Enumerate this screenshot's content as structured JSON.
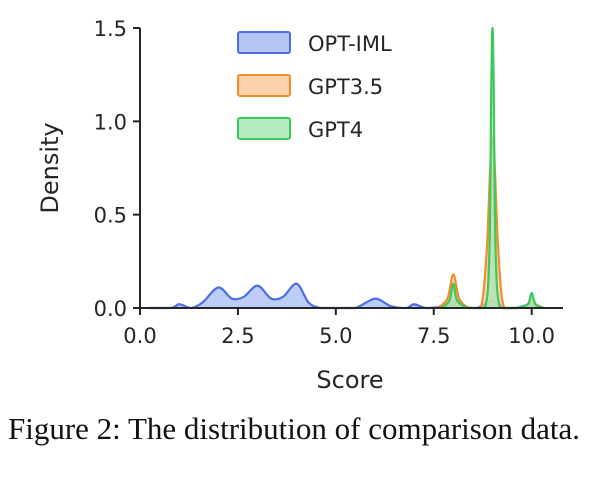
{
  "chart_data": {
    "type": "area",
    "title": "",
    "xlabel": "Score",
    "ylabel": "Density",
    "xlim": [
      0.0,
      10.8
    ],
    "ylim": [
      0.0,
      1.5
    ],
    "xticks": [
      {
        "value": 0.0,
        "label": "0.0"
      },
      {
        "value": 2.5,
        "label": "2.5"
      },
      {
        "value": 5.0,
        "label": "5.0"
      },
      {
        "value": 7.5,
        "label": "7.5"
      },
      {
        "value": 10.0,
        "label": "10.0"
      }
    ],
    "yticks": [
      {
        "value": 0.0,
        "label": "0.0"
      },
      {
        "value": 0.5,
        "label": "0.5"
      },
      {
        "value": 1.0,
        "label": "1.0"
      },
      {
        "value": 1.5,
        "label": "1.5"
      }
    ],
    "legend_position": "top-center",
    "series": [
      {
        "name": "OPT-IML",
        "color": "#4a6fe3",
        "fill": "#a8bcf4",
        "x": [
          0.2,
          0.8,
          1.0,
          1.3,
          1.6,
          2.0,
          2.35,
          2.65,
          3.0,
          3.35,
          3.65,
          4.0,
          4.3,
          4.6,
          5.0,
          5.5,
          6.0,
          6.4,
          6.8,
          7.0,
          7.3,
          7.8,
          8.0,
          8.2,
          8.6,
          9.0,
          9.3,
          9.6,
          10.0,
          10.3
        ],
        "y": [
          0.0,
          0.0,
          0.02,
          0.0,
          0.03,
          0.11,
          0.05,
          0.06,
          0.12,
          0.05,
          0.06,
          0.13,
          0.03,
          0.0,
          0.0,
          0.0,
          0.05,
          0.01,
          0.0,
          0.02,
          0.0,
          0.01,
          0.04,
          0.01,
          0.0,
          0.04,
          0.0,
          0.0,
          0.02,
          0.0
        ]
      },
      {
        "name": "GPT3.5",
        "color": "#f28e2b",
        "fill": "#f9c99a",
        "x": [
          7.6,
          7.85,
          8.0,
          8.15,
          8.4,
          8.7,
          8.85,
          8.95,
          9.0,
          9.05,
          9.15,
          9.3,
          9.7,
          9.9,
          10.0,
          10.1,
          10.3
        ],
        "y": [
          0.0,
          0.05,
          0.18,
          0.05,
          0.0,
          0.0,
          0.3,
          0.8,
          0.91,
          0.8,
          0.3,
          0.0,
          0.0,
          0.02,
          0.05,
          0.02,
          0.0
        ]
      },
      {
        "name": "GPT4",
        "color": "#3cc95a",
        "fill": "#a9e6b4",
        "x": [
          7.7,
          7.9,
          8.0,
          8.1,
          8.4,
          8.8,
          8.92,
          8.97,
          9.0,
          9.03,
          9.08,
          9.2,
          9.6,
          9.9,
          10.0,
          10.1,
          10.3
        ],
        "y": [
          0.0,
          0.04,
          0.13,
          0.04,
          0.0,
          0.0,
          0.3,
          1.2,
          1.5,
          1.2,
          0.3,
          0.0,
          0.0,
          0.02,
          0.08,
          0.02,
          0.0
        ]
      }
    ]
  },
  "caption": "Figure 2: The distribution of comparison data."
}
